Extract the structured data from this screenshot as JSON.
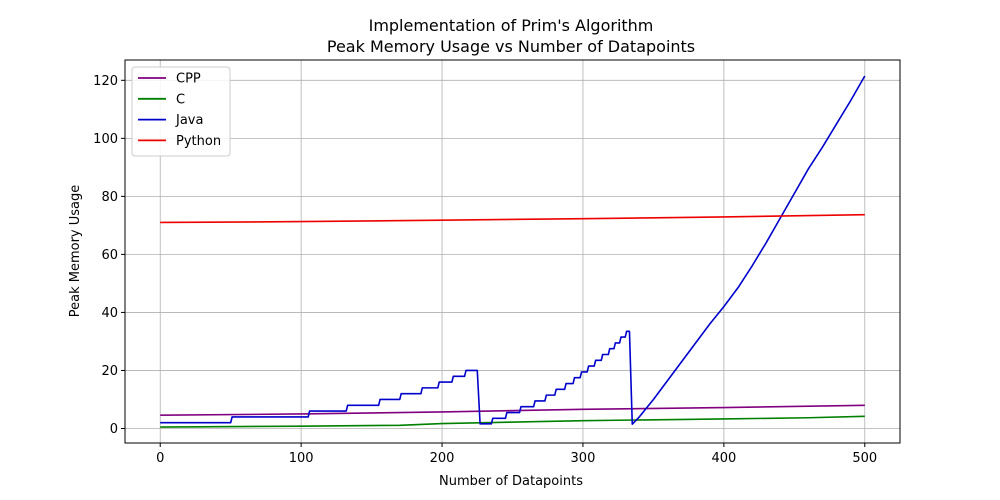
{
  "chart_data": {
    "type": "line",
    "title": "Implementation of Prim's Algorithm",
    "subtitle": "Peak Memory Usage vs Number of Datapoints",
    "xlabel": "Number of Datapoints",
    "ylabel": "Peak Memory Usage",
    "xlim": [
      -25,
      525
    ],
    "ylim": [
      -5,
      127
    ],
    "xticks": [
      0,
      100,
      200,
      300,
      400,
      500
    ],
    "yticks": [
      0,
      20,
      40,
      60,
      80,
      100,
      120
    ],
    "grid": true,
    "legend_position": "top-left",
    "series": [
      {
        "name": "CPP",
        "color": "#800080",
        "points": [
          [
            0,
            4.6
          ],
          [
            100,
            5.0
          ],
          [
            200,
            5.7
          ],
          [
            300,
            6.6
          ],
          [
            400,
            7.2
          ],
          [
            500,
            8.0
          ]
        ]
      },
      {
        "name": "C",
        "color": "#008000",
        "points": [
          [
            0,
            0.5
          ],
          [
            100,
            0.8
          ],
          [
            170,
            1.1
          ],
          [
            200,
            1.7
          ],
          [
            300,
            2.7
          ],
          [
            400,
            3.3
          ],
          [
            460,
            3.7
          ],
          [
            500,
            4.2
          ]
        ]
      },
      {
        "name": "Java",
        "color": "#0000cc",
        "points": [
          [
            0,
            2.0
          ],
          [
            50,
            2.0
          ],
          [
            51,
            4.0
          ],
          [
            105,
            4.0
          ],
          [
            106,
            6.0
          ],
          [
            132,
            6.0
          ],
          [
            133,
            8.0
          ],
          [
            155,
            8.0
          ],
          [
            156,
            10.0
          ],
          [
            170,
            10.0
          ],
          [
            171,
            12.0
          ],
          [
            185,
            12.0
          ],
          [
            186,
            14.0
          ],
          [
            197,
            14.0
          ],
          [
            198,
            16.0
          ],
          [
            207,
            16.0
          ],
          [
            208,
            18.0
          ],
          [
            216,
            18.0
          ],
          [
            217,
            20.0
          ],
          [
            225,
            20.0
          ],
          [
            227,
            1.6
          ],
          [
            235,
            1.6
          ],
          [
            236,
            3.5
          ],
          [
            245,
            3.5
          ],
          [
            246,
            5.5
          ],
          [
            255,
            5.5
          ],
          [
            256,
            7.5
          ],
          [
            265,
            7.5
          ],
          [
            266,
            9.5
          ],
          [
            273,
            9.5
          ],
          [
            274,
            11.5
          ],
          [
            280,
            11.5
          ],
          [
            281,
            13.5
          ],
          [
            287,
            13.5
          ],
          [
            288,
            15.5
          ],
          [
            293,
            15.5
          ],
          [
            294,
            17.5
          ],
          [
            298,
            17.5
          ],
          [
            299,
            19.5
          ],
          [
            303,
            19.5
          ],
          [
            304,
            21.5
          ],
          [
            308,
            21.5
          ],
          [
            309,
            23.5
          ],
          [
            313,
            23.5
          ],
          [
            314,
            25.5
          ],
          [
            318,
            25.5
          ],
          [
            319,
            27.5
          ],
          [
            322,
            27.5
          ],
          [
            323,
            29.5
          ],
          [
            326,
            29.5
          ],
          [
            327,
            31.5
          ],
          [
            330,
            31.5
          ],
          [
            331,
            33.5
          ],
          [
            333,
            33.5
          ],
          [
            335,
            1.5
          ],
          [
            340,
            4.0
          ],
          [
            350,
            10.0
          ],
          [
            360,
            16.5
          ],
          [
            370,
            23.0
          ],
          [
            380,
            29.5
          ],
          [
            390,
            36.0
          ],
          [
            400,
            42.0
          ],
          [
            410,
            48.5
          ],
          [
            420,
            56.0
          ],
          [
            430,
            64.0
          ],
          [
            440,
            72.5
          ],
          [
            450,
            81.0
          ],
          [
            460,
            89.5
          ],
          [
            470,
            97.0
          ],
          [
            480,
            105.0
          ],
          [
            490,
            113.0
          ],
          [
            500,
            121.5
          ]
        ]
      },
      {
        "name": "Python",
        "color": "#ee0000",
        "points": [
          [
            0,
            71.0
          ],
          [
            100,
            71.3
          ],
          [
            200,
            71.8
          ],
          [
            300,
            72.3
          ],
          [
            400,
            72.9
          ],
          [
            500,
            73.7
          ]
        ]
      }
    ]
  }
}
